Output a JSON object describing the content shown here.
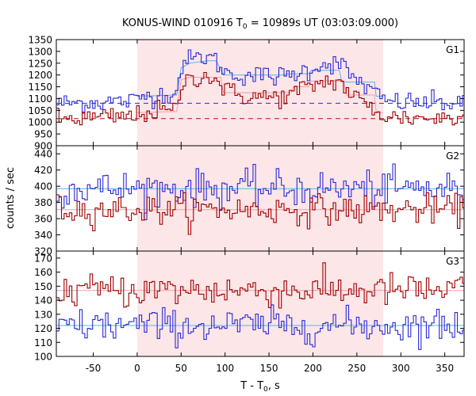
{
  "chart_data": {
    "type": "line",
    "title": "KONUS-WIND 010916 T",
    "title_sub": "0",
    "title_rest": " = 10989s UT (03:03:09.000)",
    "xlabel": "T - T",
    "xlabel_sub": "0",
    "xlabel_rest": ", s",
    "ylabel": "counts / sec",
    "xlim": [
      -92,
      372
    ],
    "xticks": [
      -50,
      0,
      50,
      100,
      150,
      200,
      250,
      300,
      350
    ],
    "shaded_interval": [
      0,
      280
    ],
    "bin_width": 2.944,
    "colors": {
      "blue": "#2a2ad4",
      "red": "#9e0000",
      "blue_fit": "#55b5e6",
      "red_fit": "#f0a0a8",
      "blue_bg": "#2a2ad4",
      "red_bg": "#b01010",
      "shade": "#fde6e8"
    },
    "panels": [
      {
        "label": "G1",
        "ylim": [
          900,
          1350
        ],
        "yticks": [
          900,
          950,
          1000,
          1050,
          1100,
          1150,
          1200,
          1250,
          1300,
          1350
        ],
        "series": [
          {
            "key": "blue",
            "base": 1080,
            "noise": 22,
            "profile": [
              [
                -92,
                1080
              ],
              [
                0,
                1090
              ],
              [
                5,
                1110
              ],
              [
                45,
                1125
              ],
              [
                50,
                1240
              ],
              [
                58,
                1260
              ],
              [
                75,
                1280
              ],
              [
                85,
                1270
              ],
              [
                95,
                1240
              ],
              [
                100,
                1210
              ],
              [
                110,
                1200
              ],
              [
                125,
                1200
              ],
              [
                150,
                1195
              ],
              [
                175,
                1195
              ],
              [
                180,
                1210
              ],
              [
                195,
                1220
              ],
              [
                205,
                1240
              ],
              [
                220,
                1250
              ],
              [
                230,
                1250
              ],
              [
                245,
                1190
              ],
              [
                258,
                1160
              ],
              [
                270,
                1120
              ],
              [
                280,
                1095
              ],
              [
                290,
                1085
              ],
              [
                372,
                1080
              ]
            ],
            "background": 1080,
            "fit": [
              [
                0,
                1110
              ],
              [
                45,
                1115
              ],
              [
                50,
                1230
              ],
              [
                60,
                1250
              ],
              [
                80,
                1260
              ],
              [
                90,
                1260
              ],
              [
                98,
                1200
              ],
              [
                100,
                1200
              ],
              [
                160,
                1200
              ],
              [
                168,
                1200
              ],
              [
                170,
                1205
              ],
              [
                195,
                1205
              ],
              [
                198,
                1220
              ],
              [
                230,
                1220
              ],
              [
                233,
                1170
              ],
              [
                270,
                1170
              ],
              [
                272,
                1110
              ],
              [
                280,
                1110
              ]
            ]
          },
          {
            "key": "red",
            "base": 1015,
            "noise": 22,
            "profile": [
              [
                -92,
                1012
              ],
              [
                0,
                1025
              ],
              [
                5,
                1040
              ],
              [
                45,
                1050
              ],
              [
                50,
                1160
              ],
              [
                58,
                1180
              ],
              [
                75,
                1200
              ],
              [
                85,
                1190
              ],
              [
                95,
                1160
              ],
              [
                100,
                1140
              ],
              [
                110,
                1120
              ],
              [
                125,
                1110
              ],
              [
                150,
                1105
              ],
              [
                175,
                1110
              ],
              [
                180,
                1130
              ],
              [
                195,
                1145
              ],
              [
                205,
                1165
              ],
              [
                220,
                1175
              ],
              [
                230,
                1170
              ],
              [
                245,
                1115
              ],
              [
                258,
                1080
              ],
              [
                270,
                1050
              ],
              [
                280,
                1030
              ],
              [
                290,
                1020
              ],
              [
                372,
                1015
              ]
            ],
            "background": 1015,
            "fit": [
              [
                0,
                1040
              ],
              [
                45,
                1045
              ],
              [
                50,
                1180
              ],
              [
                60,
                1190
              ],
              [
                95,
                1190
              ],
              [
                98,
                1125
              ],
              [
                175,
                1125
              ],
              [
                178,
                1150
              ],
              [
                195,
                1150
              ],
              [
                198,
                1175
              ],
              [
                235,
                1175
              ],
              [
                238,
                1115
              ],
              [
                270,
                1115
              ],
              [
                272,
                1040
              ],
              [
                280,
                1040
              ]
            ]
          }
        ]
      },
      {
        "label": "G2",
        "ylim": [
          320,
          450
        ],
        "yticks": [
          320,
          340,
          360,
          380,
          400,
          420,
          440
        ],
        "series": [
          {
            "key": "blue",
            "base": 397,
            "noise": 11,
            "profile": [
              [
                -92,
                397
              ],
              [
                372,
                397
              ]
            ],
            "background": null,
            "fit": [
              [
                -92,
                397
              ],
              [
                372,
                397
              ]
            ]
          },
          {
            "key": "red",
            "base": 371,
            "noise": 9,
            "profile": [
              [
                -92,
                371
              ],
              [
                372,
                371
              ]
            ],
            "background": null,
            "fit": [
              [
                -92,
                371
              ],
              [
                372,
                371
              ]
            ]
          }
        ]
      },
      {
        "label": "G3",
        "ylim": [
          100,
          175
        ],
        "yticks": [
          100,
          110,
          120,
          130,
          140,
          150,
          160,
          170
        ],
        "series": [
          {
            "key": "red",
            "base": 147,
            "noise": 6,
            "profile": [
              [
                -92,
                147
              ],
              [
                372,
                147
              ]
            ],
            "background": null,
            "fit": [
              [
                -92,
                147
              ],
              [
                372,
                147
              ]
            ]
          },
          {
            "key": "blue",
            "base": 122,
            "noise": 6,
            "profile": [
              [
                -92,
                122
              ],
              [
                372,
                122
              ]
            ],
            "background": null,
            "fit": [
              [
                -92,
                122
              ],
              [
                372,
                122
              ]
            ]
          }
        ]
      }
    ]
  }
}
